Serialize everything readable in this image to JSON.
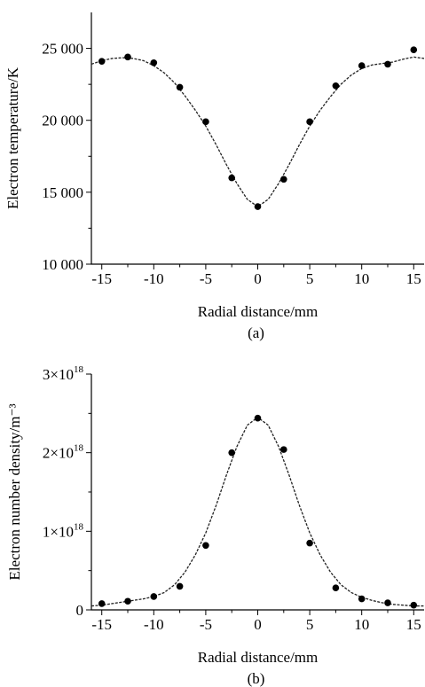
{
  "chart_data": [
    {
      "type": "scatter",
      "panel_label": "(a)",
      "xlabel": "Radial distance/mm",
      "ylabel": "Electron temperature/K",
      "xlim": [
        -16,
        16
      ],
      "ylim": [
        10000,
        27500
      ],
      "x_ticks": [
        -15,
        -10,
        -5,
        0,
        5,
        10,
        15
      ],
      "x_minor_ticks": [
        -12.5,
        -7.5,
        -2.5,
        2.5,
        7.5,
        12.5
      ],
      "y_ticks": [
        {
          "value": 10000,
          "label": "10 000"
        },
        {
          "value": 15000,
          "label": "15 000"
        },
        {
          "value": 20000,
          "label": "20 000"
        },
        {
          "value": 25000,
          "label": "25 000"
        }
      ],
      "y_minor_ticks": [
        12500,
        17500,
        22500
      ],
      "grid": false,
      "series": [
        {
          "marker": "filled-circle",
          "x": [
            -15,
            -12.5,
            -10,
            -7.5,
            -5,
            -2.5,
            0,
            2.5,
            5,
            7.5,
            10,
            12.5,
            15
          ],
          "y": [
            24100,
            24400,
            24000,
            22300,
            19900,
            16000,
            14000,
            15900,
            19900,
            22400,
            23800,
            23900,
            24900
          ]
        },
        {
          "line_style": "dashed",
          "x": [
            -16,
            -15,
            -14,
            -13,
            -12,
            -11,
            -10,
            -9,
            -8,
            -7,
            -6,
            -5,
            -4,
            -3,
            -2,
            -1,
            0,
            1,
            2,
            3,
            4,
            5,
            6,
            7,
            8,
            9,
            10,
            11,
            12,
            13,
            14,
            15,
            16
          ],
          "y": [
            23900,
            24150,
            24300,
            24350,
            24300,
            24150,
            23800,
            23300,
            22600,
            21700,
            20700,
            19600,
            18300,
            16900,
            15600,
            14500,
            14000,
            14500,
            15600,
            16900,
            18300,
            19600,
            20700,
            21650,
            22500,
            23150,
            23600,
            23850,
            23950,
            24050,
            24250,
            24400,
            24300
          ]
        }
      ]
    },
    {
      "type": "scatter",
      "panel_label": "(b)",
      "xlabel": "Radial distance/mm",
      "ylabel": "Electron number density/m⁻³",
      "xlim": [
        -16,
        16
      ],
      "ylim": [
        0,
        3e+18
      ],
      "x_ticks": [
        -15,
        -10,
        -5,
        0,
        5,
        10,
        15
      ],
      "x_minor_ticks": [
        -12.5,
        -7.5,
        -2.5,
        2.5,
        7.5,
        12.5
      ],
      "y_ticks": [
        {
          "value": 0,
          "label": "0"
        },
        {
          "value": 1e+18,
          "label": "1×10",
          "exp": "18"
        },
        {
          "value": 2e+18,
          "label": "2×10",
          "exp": "18"
        },
        {
          "value": 3e+18,
          "label": "3×10",
          "exp": "18"
        }
      ],
      "y_minor_ticks": [
        5e+17,
        1.5e+18,
        2.5e+18
      ],
      "grid": false,
      "series": [
        {
          "marker": "filled-circle",
          "x": [
            -15,
            -12.5,
            -10,
            -7.5,
            -5,
            -2.5,
            0,
            2.5,
            5,
            7.5,
            10,
            12.5,
            15
          ],
          "y": [
            8e+16,
            1.1e+17,
            1.7e+17,
            3e+17,
            8.2e+17,
            2e+18,
            2.44e+18,
            2.04e+18,
            8.5e+17,
            2.8e+17,
            1.4e+17,
            9e+16,
            6e+16
          ]
        },
        {
          "line_style": "dashed",
          "x": [
            -16,
            -15,
            -14,
            -13,
            -12,
            -11,
            -10,
            -9,
            -8,
            -7,
            -6,
            -5,
            -4,
            -3,
            -2,
            -1,
            0,
            1,
            2,
            3,
            4,
            5,
            6,
            7,
            8,
            9,
            10,
            11,
            12,
            13,
            14,
            15,
            16
          ],
          "y": [
            5e+16,
            6e+16,
            8e+16,
            1e+17,
            1.2e+17,
            1.4e+17,
            1.7e+17,
            2.2e+17,
            3.2e+17,
            4.8e+17,
            7e+17,
            9.8e+17,
            1.33e+18,
            1.72e+18,
            2.08e+18,
            2.35e+18,
            2.45e+18,
            2.35e+18,
            2.08e+18,
            1.72e+18,
            1.33e+18,
            9.8e+17,
            7e+17,
            4.8e+17,
            3.2e+17,
            2.2e+17,
            1.6e+17,
            1.2e+17,
            9e+16,
            7e+16,
            6e+16,
            5e+16,
            5e+16
          ]
        }
      ]
    }
  ]
}
